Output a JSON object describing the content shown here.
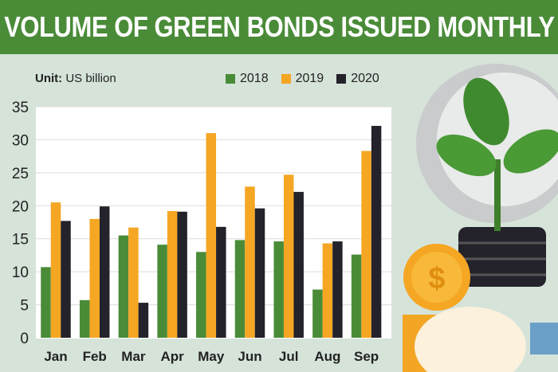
{
  "chart_data": {
    "type": "bar",
    "title": "VOLUME OF GREEN BONDS ISSUED MONTHLY",
    "unit_label": "Unit:",
    "unit_value": "US billion",
    "categories": [
      "Jan",
      "Feb",
      "Mar",
      "Apr",
      "May",
      "Jun",
      "Jul",
      "Aug",
      "Sep"
    ],
    "series": [
      {
        "name": "2018",
        "color": "#4a8b38",
        "values": [
          10.7,
          5.7,
          15.5,
          14.1,
          13.0,
          14.8,
          14.6,
          7.3,
          12.6
        ]
      },
      {
        "name": "2019",
        "color": "#f5a623",
        "values": [
          20.5,
          18.0,
          16.7,
          19.2,
          31.0,
          22.9,
          24.7,
          14.3,
          28.3
        ]
      },
      {
        "name": "2020",
        "color": "#24222a",
        "values": [
          17.7,
          19.9,
          5.3,
          19.1,
          16.8,
          19.6,
          22.1,
          14.6,
          32.1
        ]
      }
    ],
    "yticks": [
      "0",
      "5",
      "10",
      "15",
      "20",
      "25",
      "30",
      "35"
    ],
    "ylim": [
      0,
      35
    ],
    "grid": true,
    "legend_position": "top"
  }
}
